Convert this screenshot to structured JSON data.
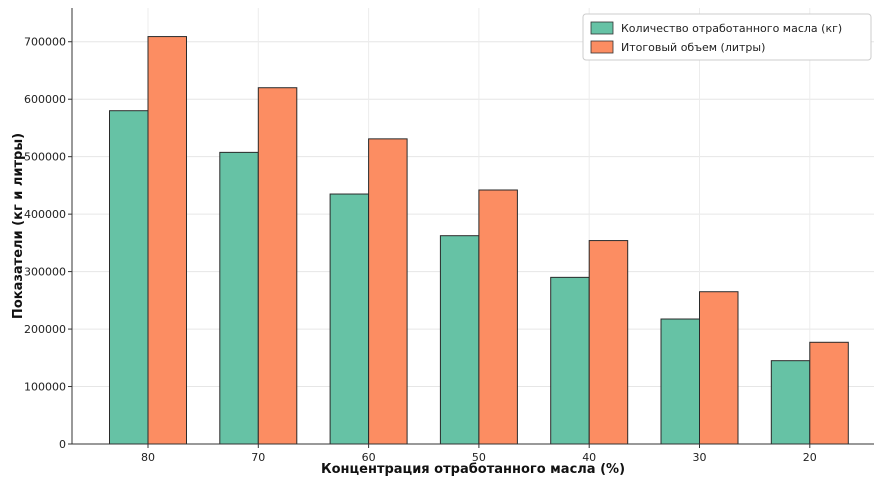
{
  "chart_data": {
    "type": "bar",
    "title": "",
    "xlabel": "Концентрация отработанного масла (%)",
    "ylabel": "Показатели (кг и литры)",
    "categories": [
      "80",
      "70",
      "60",
      "50",
      "40",
      "30",
      "20"
    ],
    "series": [
      {
        "name": "Количество отработанного масла (кг)",
        "color": "#66c2a5",
        "values": [
          580000,
          507500,
          435000,
          362500,
          290000,
          217500,
          145000
        ]
      },
      {
        "name": "Итоговый объем (литры)",
        "color": "#fc8d62",
        "values": [
          709000,
          620000,
          531000,
          442000,
          354000,
          265000,
          177000
        ]
      }
    ],
    "ylim": [
      0,
      710000
    ],
    "yticks": [
      0,
      100000,
      200000,
      300000,
      400000,
      500000,
      600000,
      700000
    ],
    "grid": true,
    "legend_position": "top-right"
  }
}
